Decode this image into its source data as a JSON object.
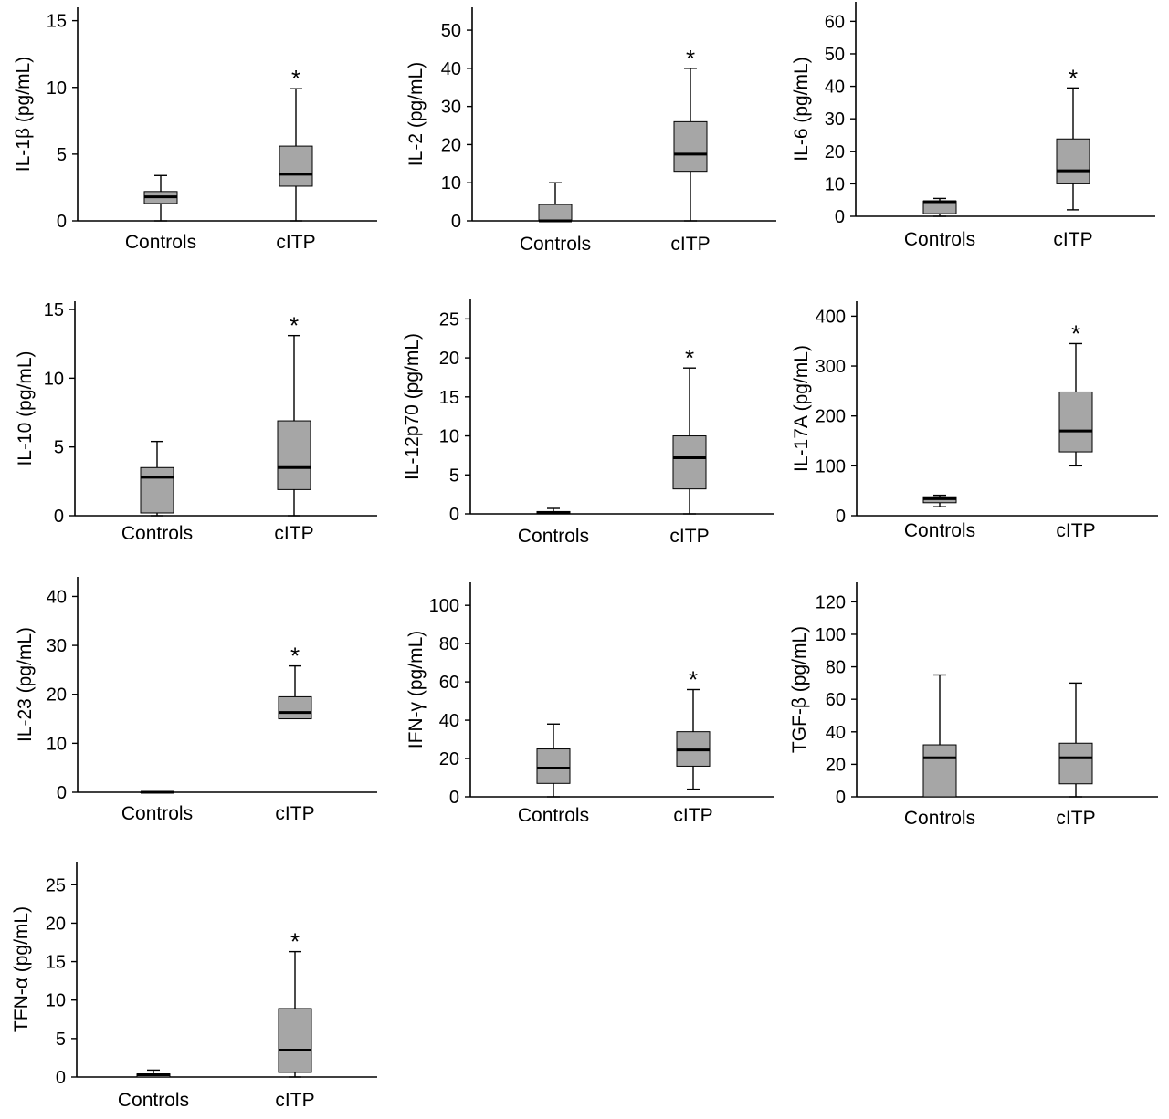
{
  "chart_data": [
    {
      "type": "box",
      "ylabel": "IL-1β (pg/mL)",
      "categories": [
        "Controls",
        "cITP"
      ],
      "ylim": [
        0,
        16
      ],
      "yticks": [
        0,
        5,
        10,
        15
      ],
      "boxes": [
        {
          "min": 0,
          "q1": 1.3,
          "median": 1.8,
          "q3": 2.2,
          "max": 3.4,
          "significant": false
        },
        {
          "min": 0,
          "q1": 2.6,
          "median": 3.5,
          "q3": 5.6,
          "max": 9.9,
          "significant": true
        }
      ]
    },
    {
      "type": "box",
      "ylabel": "IL-2 (pg/mL)",
      "categories": [
        "Controls",
        "cITP"
      ],
      "ylim": [
        0,
        56
      ],
      "yticks": [
        0,
        10,
        20,
        30,
        40,
        50
      ],
      "boxes": [
        {
          "min": 0,
          "q1": 0,
          "median": 0,
          "q3": 4.3,
          "max": 10,
          "significant": false
        },
        {
          "min": 0,
          "q1": 13,
          "median": 17.5,
          "q3": 26,
          "max": 40,
          "significant": true
        }
      ]
    },
    {
      "type": "box",
      "ylabel": "IL-6 (pg/mL)",
      "categories": [
        "Controls",
        "cITP"
      ],
      "ylim": [
        0,
        66
      ],
      "yticks": [
        0,
        10,
        20,
        30,
        40,
        50,
        60
      ],
      "boxes": [
        {
          "min": 0,
          "q1": 0.8,
          "median": 4.5,
          "q3": 4.7,
          "max": 5.5,
          "significant": false
        },
        {
          "min": 2,
          "q1": 10,
          "median": 14,
          "q3": 23.8,
          "max": 39.5,
          "significant": true
        }
      ]
    },
    {
      "type": "box",
      "ylabel": "IL-10 (pg/mL)",
      "categories": [
        "Controls",
        "cITP"
      ],
      "ylim": [
        0,
        15.6
      ],
      "yticks": [
        0,
        5,
        10,
        15
      ],
      "boxes": [
        {
          "min": 0,
          "q1": 0.2,
          "median": 2.8,
          "q3": 3.5,
          "max": 5.4,
          "significant": false
        },
        {
          "min": 0,
          "q1": 1.9,
          "median": 3.5,
          "q3": 6.9,
          "max": 13.1,
          "significant": true
        }
      ]
    },
    {
      "type": "box",
      "ylabel": "IL-12p70 (pg/mL)",
      "categories": [
        "Controls",
        "cITP"
      ],
      "ylim": [
        0,
        27.5
      ],
      "yticks": [
        0,
        5,
        10,
        15,
        20,
        25
      ],
      "boxes": [
        {
          "min": 0,
          "q1": 0,
          "median": 0.15,
          "q3": 0.3,
          "max": 0.7,
          "significant": false
        },
        {
          "min": 0,
          "q1": 3.2,
          "median": 7.2,
          "q3": 10,
          "max": 18.7,
          "significant": true
        }
      ]
    },
    {
      "type": "box",
      "ylabel": "IL-17A (pg/mL)",
      "categories": [
        "Controls",
        "cITP"
      ],
      "ylim": [
        0,
        430
      ],
      "yticks": [
        0,
        100,
        200,
        300,
        400
      ],
      "boxes": [
        {
          "min": 18,
          "q1": 26,
          "median": 34,
          "q3": 38,
          "max": 41,
          "significant": false
        },
        {
          "min": 100,
          "q1": 128,
          "median": 170,
          "q3": 248,
          "max": 345,
          "significant": true
        }
      ]
    },
    {
      "type": "box",
      "ylabel": "IL-23 (pg/mL)",
      "categories": [
        "Controls",
        "cITP"
      ],
      "ylim": [
        0,
        44
      ],
      "yticks": [
        0,
        10,
        20,
        30,
        40
      ],
      "boxes": [
        {
          "min": 0,
          "q1": 0,
          "median": 0,
          "q3": 0,
          "max": 0,
          "significant": false
        },
        {
          "min": 15,
          "q1": 15,
          "median": 16.3,
          "q3": 19.5,
          "max": 25.8,
          "significant": true
        }
      ]
    },
    {
      "type": "box",
      "ylabel": "IFN-γ (pg/mL)",
      "categories": [
        "Controls",
        "cITP"
      ],
      "ylim": [
        0,
        112
      ],
      "yticks": [
        0,
        20,
        40,
        60,
        80,
        100
      ],
      "boxes": [
        {
          "min": 0,
          "q1": 7,
          "median": 15,
          "q3": 25,
          "max": 38,
          "significant": false
        },
        {
          "min": 4,
          "q1": 16,
          "median": 24.5,
          "q3": 34,
          "max": 56,
          "significant": true
        }
      ]
    },
    {
      "type": "box",
      "ylabel": "TGF-β (pg/mL)",
      "categories": [
        "Controls",
        "cITP"
      ],
      "ylim": [
        0,
        132
      ],
      "yticks": [
        0,
        20,
        40,
        60,
        80,
        100,
        120
      ],
      "boxes": [
        {
          "min": 0,
          "q1": 0,
          "median": 24,
          "q3": 32,
          "max": 75,
          "significant": false
        },
        {
          "min": 0,
          "q1": 8,
          "median": 24,
          "q3": 33,
          "max": 70,
          "significant": false
        }
      ]
    },
    {
      "type": "box",
      "ylabel": "TFN-α (pg/mL)",
      "categories": [
        "Controls",
        "cITP"
      ],
      "ylim": [
        0,
        28
      ],
      "yticks": [
        0,
        5,
        10,
        15,
        20,
        25
      ],
      "boxes": [
        {
          "min": 0,
          "q1": 0,
          "median": 0.3,
          "q3": 0.4,
          "max": 0.9,
          "significant": false
        },
        {
          "min": 0,
          "q1": 0.6,
          "median": 3.5,
          "q3": 8.9,
          "max": 16.3,
          "significant": true
        }
      ]
    }
  ],
  "marker": "*",
  "colors": {
    "box_fill": "#a6a6a6",
    "line": "#000000"
  }
}
